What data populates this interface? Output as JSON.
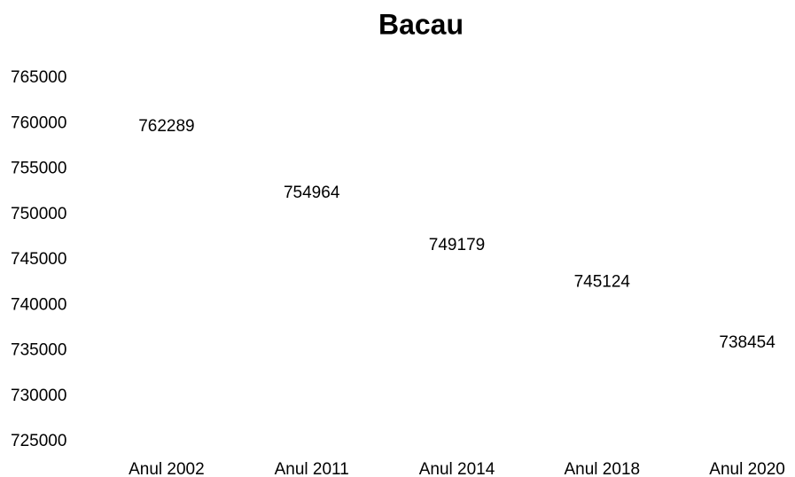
{
  "chart_data": {
    "type": "line",
    "title": "Bacau",
    "categories": [
      "Anul 2002",
      "Anul 2011",
      "Anul 2014",
      "Anul 2018",
      "Anul 2020"
    ],
    "values": [
      762289,
      754964,
      749179,
      745124,
      738454
    ],
    "ylim": [
      725000,
      765000
    ],
    "yticks": [
      725000,
      730000,
      735000,
      740000,
      745000,
      750000,
      755000,
      760000,
      765000
    ]
  }
}
